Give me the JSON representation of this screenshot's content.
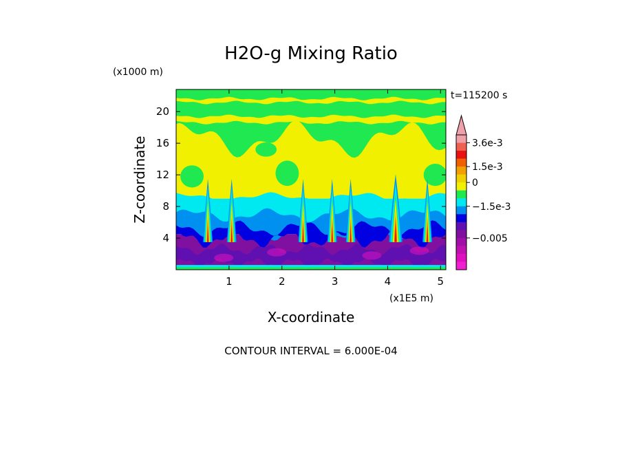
{
  "chart_data": {
    "type": "heatmap",
    "title": "H2O-g Mixing Ratio",
    "xlabel": "X-coordinate",
    "ylabel": "Z-coordinate",
    "x_unit_label": "(x1E5 m)",
    "y_unit_label": "(x1000 m)",
    "time_label": "t=115200 s",
    "footer": "CONTOUR INTERVAL = 6.000E-04",
    "xlim": [
      0,
      5.1
    ],
    "ylim": [
      0,
      22.8
    ],
    "x_ticks": [
      {
        "value": 1,
        "label": "1"
      },
      {
        "value": 2,
        "label": "2"
      },
      {
        "value": 3,
        "label": "3"
      },
      {
        "value": 4,
        "label": "4"
      },
      {
        "value": 5,
        "label": "5"
      }
    ],
    "y_ticks": [
      {
        "value": 4,
        "label": "4"
      },
      {
        "value": 8,
        "label": "8"
      },
      {
        "value": 12,
        "label": "12"
      },
      {
        "value": 16,
        "label": "16"
      },
      {
        "value": 20,
        "label": "20"
      }
    ],
    "colorbar": {
      "levels_top_to_bottom": [
        {
          "color": "#f0a0a8"
        },
        {
          "color": "#f06050"
        },
        {
          "color": "#e81010"
        },
        {
          "color": "#f06000"
        },
        {
          "color": "#f0a000"
        },
        {
          "color": "#f0d000"
        },
        {
          "color": "#f0f000"
        },
        {
          "color": "#20e850"
        },
        {
          "color": "#00e8f0"
        },
        {
          "color": "#0090f0"
        },
        {
          "color": "#0000e0"
        },
        {
          "color": "#6010b0"
        },
        {
          "color": "#8010a0"
        },
        {
          "color": "#a010a8"
        },
        {
          "color": "#c010b0"
        },
        {
          "color": "#e010c0"
        },
        {
          "color": "#f020d0"
        }
      ],
      "labels": [
        {
          "value": "3.6e-3",
          "level_index": 1
        },
        {
          "value": "1.5e-3",
          "level_index": 4
        },
        {
          "value": "0",
          "level_index": 6
        },
        {
          "value": "−1.5e-3",
          "level_index": 9
        },
        {
          "value": "−0.005",
          "level_index": 13
        }
      ],
      "extend": "max"
    },
    "field_bands": [
      {
        "name": "lower",
        "z_range": [
          0,
          4.5
        ],
        "dominant_color": "#8010a0"
      },
      {
        "name": "blue layer",
        "z_range": [
          4.5,
          7
        ],
        "dominant_color": "#0000e0"
      },
      {
        "name": "cyan layer",
        "z_range": [
          7,
          9
        ],
        "dominant_color": "#00e8f0"
      },
      {
        "name": "middle",
        "z_range": [
          9,
          17.5
        ],
        "dominant_color": "#f0f000"
      },
      {
        "name": "upper",
        "z_range": [
          17.5,
          22.8
        ],
        "dominant_color": "#20e850"
      }
    ],
    "plumes_x": [
      0.6,
      1.05,
      2.4,
      2.95,
      3.3,
      4.15,
      4.75
    ]
  }
}
